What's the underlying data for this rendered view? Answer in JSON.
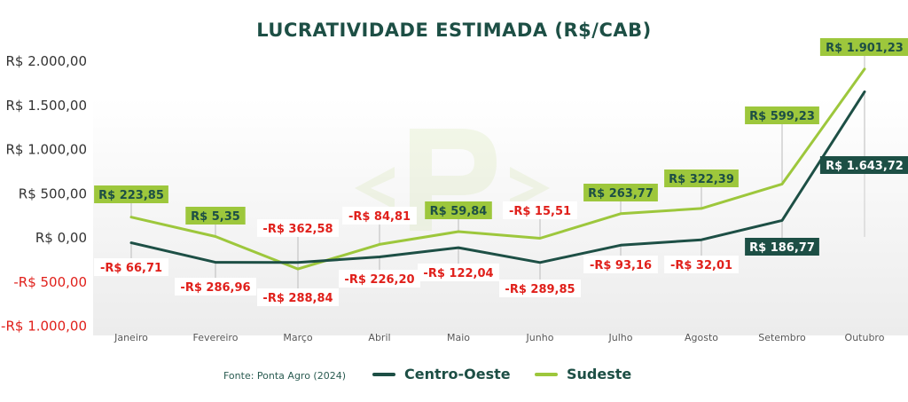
{
  "chart_data": {
    "type": "line",
    "title": "LUCRATIVIDADE ESTIMADA (R$/CAB)",
    "categories": [
      "Janeiro",
      "Fevereiro",
      "Março",
      "Abril",
      "Maio",
      "Junho",
      "Julho",
      "Agosto",
      "Setembro",
      "Outubro"
    ],
    "series": [
      {
        "name": "Centro-Oeste",
        "color": "#1d4f45",
        "values": [
          -66.71,
          -286.96,
          -288.84,
          -226.2,
          -122.04,
          -289.85,
          -93.16,
          -32.01,
          186.77,
          1643.72
        ],
        "labels": [
          "-R$ 66,71",
          "-R$ 286,96",
          "-R$ 288,84",
          "-R$ 226,20",
          "-R$ 122,04",
          "-R$ 289,85",
          "-R$ 93,16",
          "-R$ 32,01",
          "R$ 186,77",
          "R$ 1.643,72"
        ]
      },
      {
        "name": "Sudeste",
        "color": "#9dc73c",
        "values": [
          223.85,
          5.35,
          -362.58,
          -84.81,
          59.84,
          -15.51,
          263.77,
          322.39,
          599.23,
          1901.23
        ],
        "labels": [
          "R$ 223,85",
          "R$ 5,35",
          "-R$ 362,58",
          "-R$ 84,81",
          "R$ 59,84",
          "-R$ 15,51",
          "R$ 263,77",
          "R$ 322,39",
          "R$ 599,23",
          "R$ 1.901,23"
        ]
      }
    ],
    "y_ticks": [
      -1000,
      -500,
      0,
      500,
      1000,
      1500,
      2000
    ],
    "y_tick_labels": [
      "-R$ 1.000,00",
      "-R$ 500,00",
      "R$ 0,00",
      "R$ 500,00",
      "R$ 1.000,00",
      "R$ 1.500,00",
      "R$ 2.000,00"
    ],
    "ylim": [
      -1000,
      2000
    ],
    "xlabel": "",
    "ylabel": "",
    "grid": false,
    "legend_position": "bottom-center",
    "source": "Fonte: Ponta Agro (2024)",
    "colors": {
      "negative_label": "#e0201b",
      "positive_tick": "#333333",
      "label_box_dark": "#1d4f45",
      "label_box_light": "#9dc73c"
    }
  }
}
